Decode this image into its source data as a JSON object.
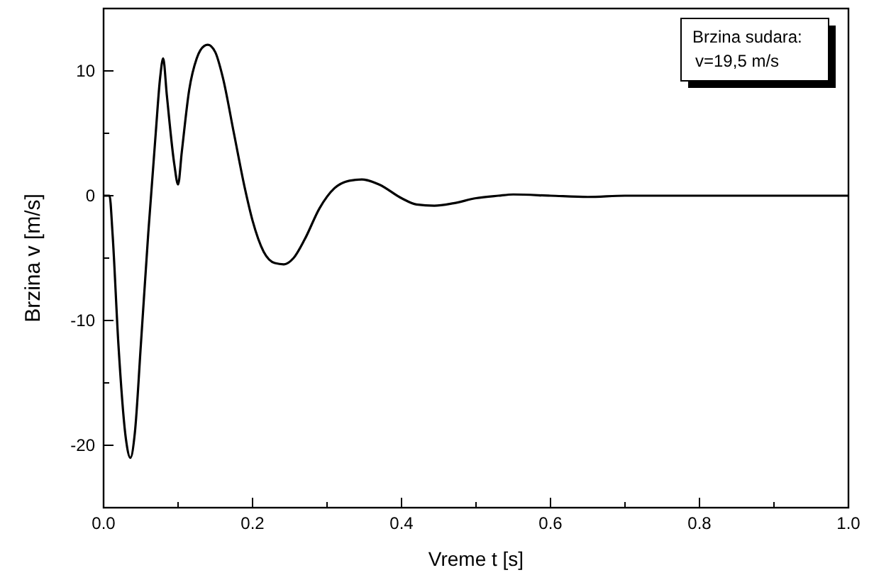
{
  "chart_data": {
    "type": "line",
    "xlabel": "Vreme t [s]",
    "ylabel": "Brzina v [m/s]",
    "annotations": [
      "Brzina sudara:",
      "v=19,5 m/s"
    ],
    "xlim": [
      0,
      1
    ],
    "ylim": [
      -25,
      15
    ],
    "xticks": [
      {
        "value": 0,
        "label": "0.0"
      },
      {
        "value": 0.1,
        "label": null
      },
      {
        "value": 0.2,
        "label": "0.2"
      },
      {
        "value": 0.3,
        "label": null
      },
      {
        "value": 0.4,
        "label": "0.4"
      },
      {
        "value": 0.5,
        "label": null
      },
      {
        "value": 0.6,
        "label": "0.6"
      },
      {
        "value": 0.7,
        "label": null
      },
      {
        "value": 0.8,
        "label": "0.8"
      },
      {
        "value": 0.9,
        "label": null
      },
      {
        "value": 1,
        "label": "1.0"
      }
    ],
    "yticks": [
      {
        "value": -25,
        "label": null
      },
      -20,
      {
        "value": -15,
        "label": null
      },
      -10,
      {
        "value": -5,
        "label": null
      },
      0,
      {
        "value": 5,
        "label": null
      },
      10,
      {
        "value": 15,
        "label": null
      }
    ],
    "grid": false,
    "marker": "none",
    "line_style": "solid",
    "series": [
      {
        "color": "#000000",
        "x": [
          0,
          0.008,
          0.012,
          0.02,
          0.03,
          0.036,
          0.042,
          0.05,
          0.06,
          0.07,
          0.076,
          0.08,
          0.085,
          0.095,
          0.1,
          0.105,
          0.115,
          0.125,
          0.135,
          0.14,
          0.15,
          0.16,
          0.175,
          0.19,
          0.2,
          0.215,
          0.23,
          0.242,
          0.255,
          0.27,
          0.29,
          0.31,
          0.33,
          0.347,
          0.37,
          0.4,
          0.42,
          0.444,
          0.47,
          0.5,
          0.53,
          0.55,
          0.6,
          0.65,
          0.7,
          0.8,
          0.9,
          1.0
        ],
        "values": [
          0,
          0,
          -3,
          -12,
          -19.5,
          -21,
          -19,
          -12,
          -3,
          5,
          9.5,
          11,
          8,
          2.5,
          0.9,
          3.5,
          8.5,
          11,
          12,
          12.1,
          11.5,
          9.5,
          5,
          0.5,
          -2,
          -4.5,
          -5.4,
          -5.5,
          -5,
          -3.5,
          -1,
          0.6,
          1.2,
          1.3,
          0.9,
          -0.2,
          -0.7,
          -0.8,
          -0.6,
          -0.2,
          0,
          0.1,
          0,
          -0.1,
          0,
          0,
          0,
          0
        ]
      }
    ]
  }
}
